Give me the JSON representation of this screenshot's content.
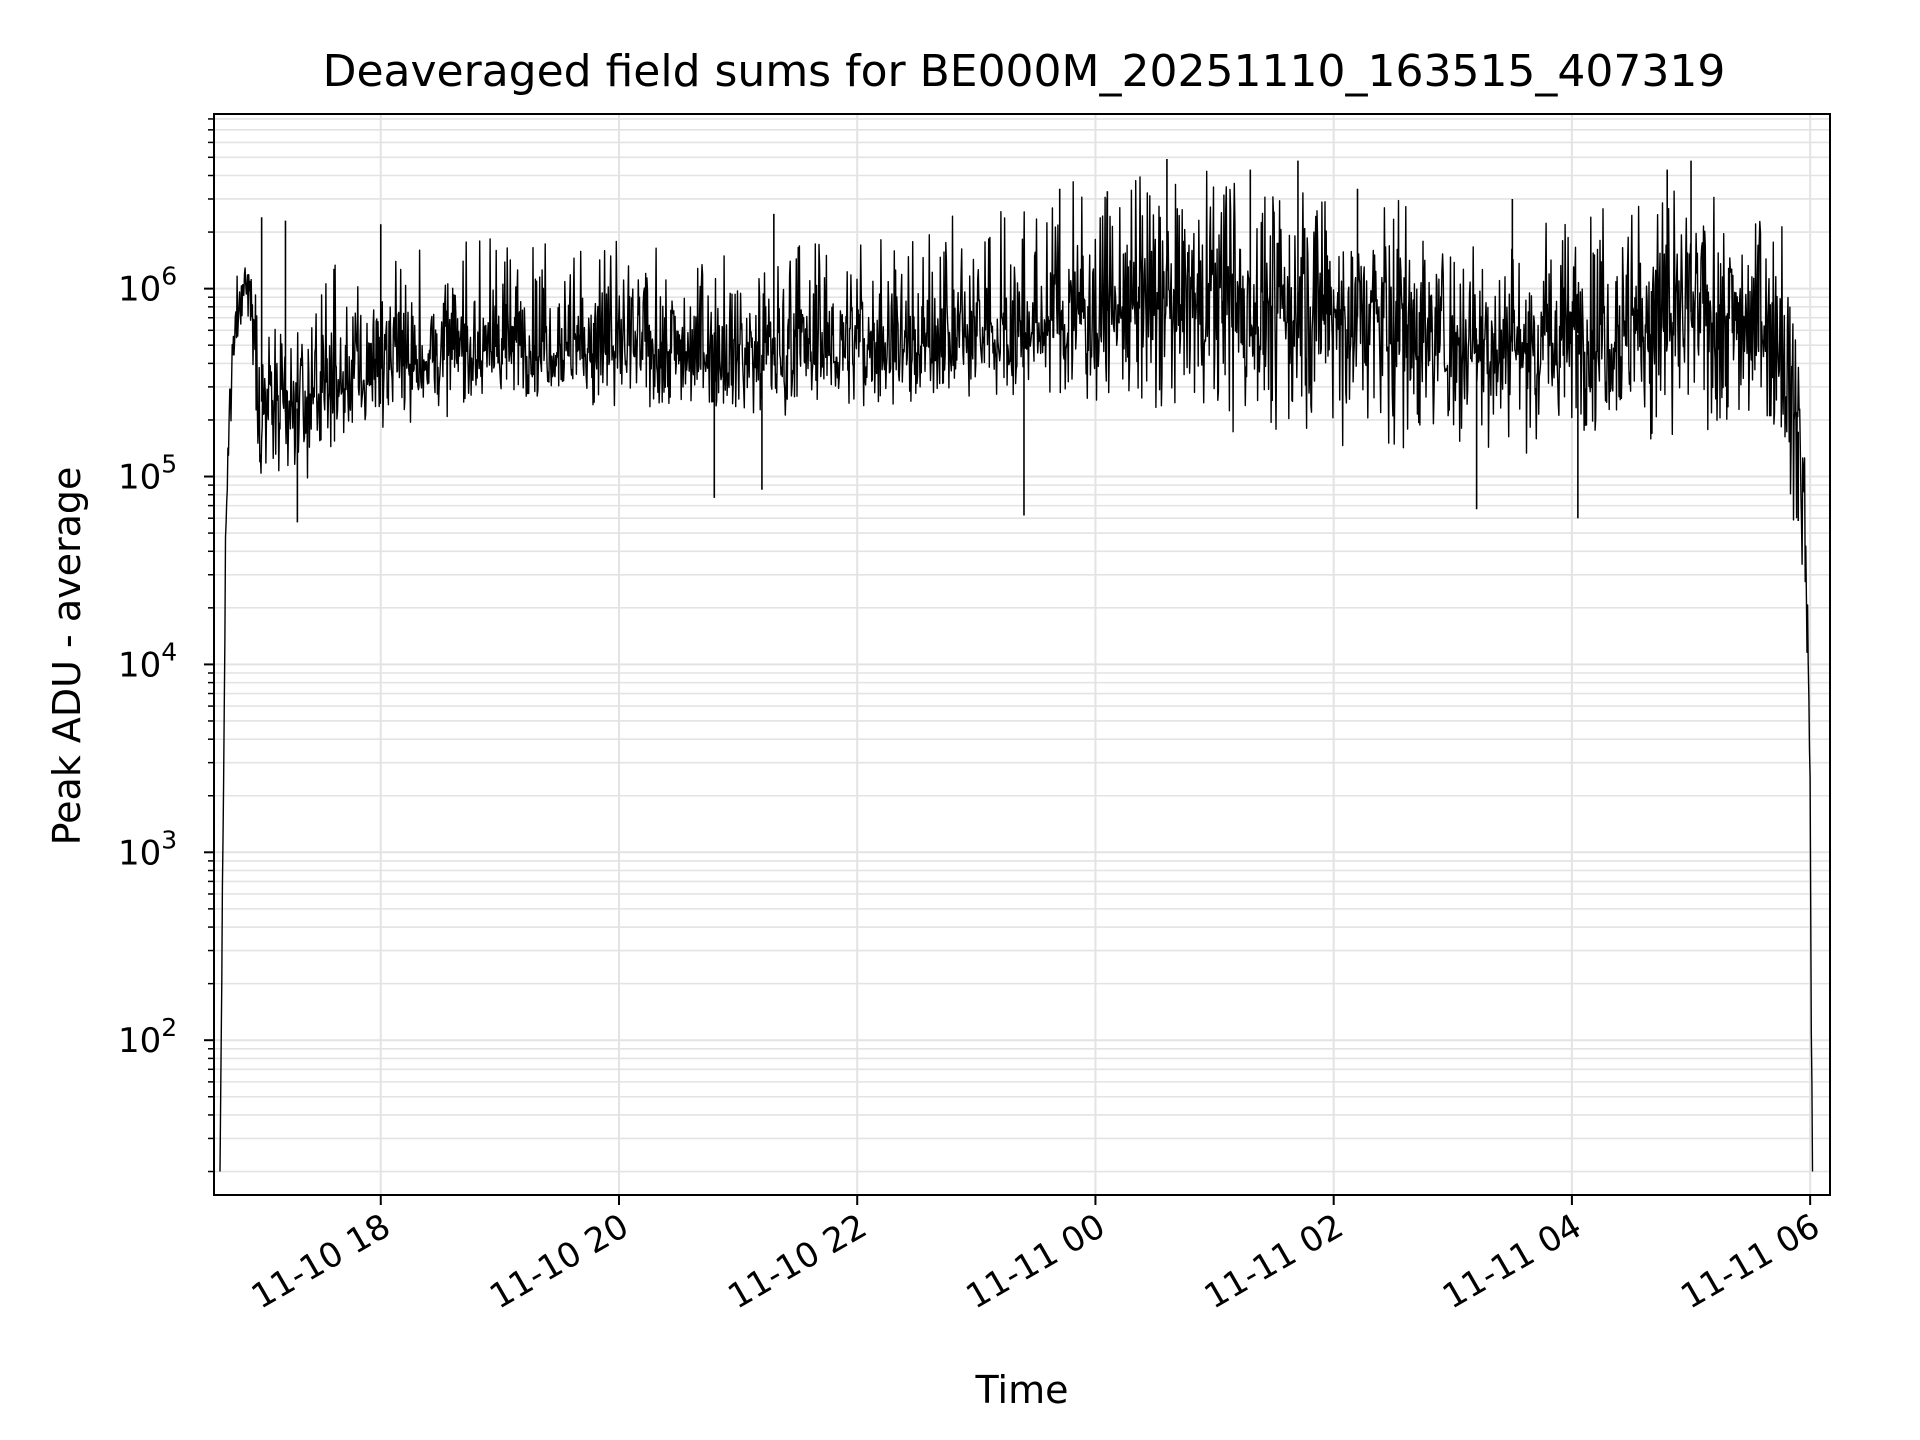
{
  "chart_data": {
    "type": "line",
    "title": "Deaveraged field sums for BE000M_20251110_163515_407319",
    "xlabel": "Time",
    "ylabel": "Peak ADU - average",
    "yscale": "log",
    "ylim": [
      15,
      8500000
    ],
    "xlim": [
      "2025-11-10 16:36",
      "2025-11-11 06:10"
    ],
    "grid": true,
    "x_ticks": [
      "11-10 18",
      "11-10 20",
      "11-10 22",
      "11-11 00",
      "11-11 02",
      "11-11 04",
      "11-11 06"
    ],
    "y_ticks": [
      {
        "base": "10",
        "exp": "2",
        "value": 100
      },
      {
        "base": "10",
        "exp": "3",
        "value": 1000
      },
      {
        "base": "10",
        "exp": "4",
        "value": 10000
      },
      {
        "base": "10",
        "exp": "5",
        "value": 100000
      },
      {
        "base": "10",
        "exp": "6",
        "value": 1000000
      }
    ],
    "line_color": "#000000",
    "grid_color": "#e3e3e3",
    "series": [
      {
        "name": "deaveraged field sums",
        "x_hours_since_1800": [
          -1.35,
          -1.3,
          -1.25,
          -1.2,
          -1.15,
          -1.1,
          -1.05,
          -1.0,
          -0.9,
          -0.8,
          -0.7,
          -0.6,
          -0.5,
          -0.4,
          -0.3,
          -0.2,
          0.0,
          0.5,
          1.0,
          1.5,
          2.0,
          2.5,
          3.0,
          3.5,
          4.0,
          4.5,
          5.0,
          5.5,
          6.0,
          6.5,
          7.0,
          7.5,
          8.0,
          8.5,
          9.0,
          9.5,
          10.0,
          10.5,
          11.0,
          11.5,
          11.75,
          11.85,
          11.95,
          11.98,
          12.0,
          12.02
        ],
        "median_y": [
          20,
          50000,
          400000,
          800000,
          1200000,
          1000000,
          500000,
          250000,
          220000,
          220000,
          230000,
          240000,
          260000,
          280000,
          300000,
          330000,
          380000,
          420000,
          480000,
          500000,
          480000,
          460000,
          440000,
          450000,
          470000,
          500000,
          520000,
          600000,
          750000,
          800000,
          820000,
          780000,
          750000,
          650000,
          550000,
          520000,
          560000,
          650000,
          750000,
          700000,
          600000,
          300000,
          100000,
          10000,
          2000,
          20
        ],
        "min_envelope_y": [
          20,
          30000,
          200000,
          500000,
          700000,
          600000,
          150000,
          100000,
          90000,
          100000,
          110000,
          120000,
          140000,
          150000,
          160000,
          180000,
          200000,
          230000,
          260000,
          270000,
          250000,
          240000,
          230000,
          240000,
          250000,
          260000,
          270000,
          300000,
          280000,
          250000,
          200000,
          180000,
          170000,
          160000,
          150000,
          160000,
          170000,
          180000,
          190000,
          200000,
          180000,
          60000,
          30000,
          5000,
          800,
          15
        ],
        "max_envelope_y": [
          20,
          100000,
          600000,
          1300000,
          1500000,
          1400000,
          1000000,
          700000,
          600000,
          650000,
          700000,
          800000,
          900000,
          1000000,
          1100000,
          1200000,
          1300000,
          1400000,
          1500000,
          1500000,
          1400000,
          1300000,
          1300000,
          1400000,
          1500000,
          1600000,
          1800000,
          2500000,
          3000000,
          3300000,
          3500000,
          3200000,
          3000000,
          2500000,
          2000000,
          1800000,
          2000000,
          2500000,
          2500000,
          2300000,
          2000000,
          1000000,
          300000,
          40000,
          5000,
          20
        ],
        "spike_peaks": [
          {
            "x": -1.0,
            "y": 2400000
          },
          {
            "x": -0.8,
            "y": 2300000
          },
          {
            "x": 0.0,
            "y": 2200000
          },
          {
            "x": 3.3,
            "y": 2500000
          },
          {
            "x": 5.7,
            "y": 3400000
          },
          {
            "x": 6.1,
            "y": 3300000
          },
          {
            "x": 6.6,
            "y": 4900000
          },
          {
            "x": 7.3,
            "y": 4300000
          },
          {
            "x": 7.7,
            "y": 4800000
          },
          {
            "x": 8.2,
            "y": 3400000
          },
          {
            "x": 9.5,
            "y": 3000000
          },
          {
            "x": 10.8,
            "y": 4300000
          },
          {
            "x": 11.0,
            "y": 4800000
          }
        ],
        "dip_troughs": [
          {
            "x": -0.7,
            "y": 57000
          },
          {
            "x": 2.8,
            "y": 77000
          },
          {
            "x": 3.2,
            "y": 85000
          },
          {
            "x": 5.4,
            "y": 62000
          },
          {
            "x": 9.2,
            "y": 67000
          },
          {
            "x": 10.05,
            "y": 60000
          },
          {
            "x": 11.9,
            "y": 58000
          }
        ]
      }
    ]
  }
}
